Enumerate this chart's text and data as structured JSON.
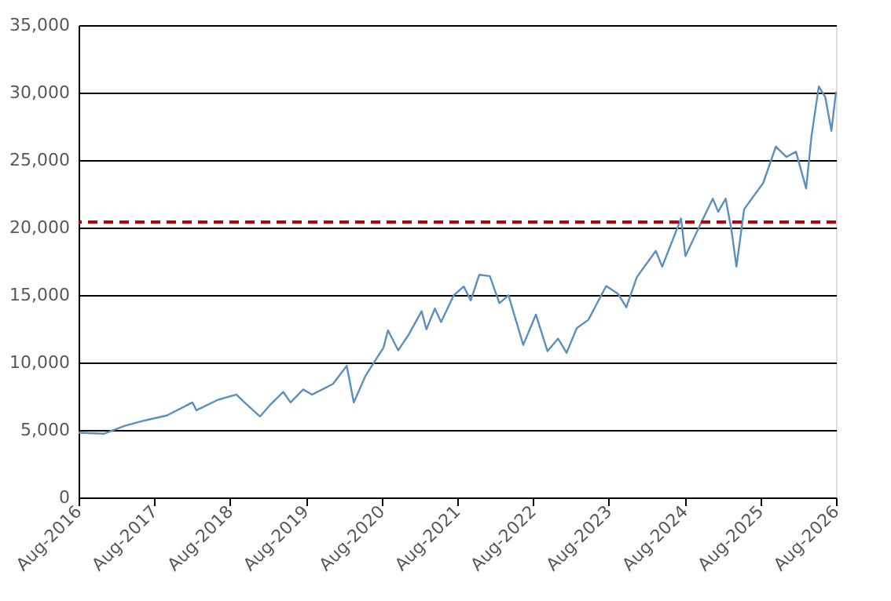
{
  "chart_data": {
    "type": "line",
    "x": [
      "2016-08-01",
      "2016-12-01",
      "2017-03-10",
      "2017-06-15",
      "2017-10-01",
      "2018-02-01",
      "2018-02-20",
      "2018-06-05",
      "2018-09-01",
      "2018-10-10",
      "2018-12-24",
      "2019-02-10",
      "2019-04-15",
      "2019-05-20",
      "2019-07-20",
      "2019-09-01",
      "2019-12-10",
      "2020-02-15",
      "2020-03-20",
      "2020-05-15",
      "2020-08-10",
      "2020-09-01",
      "2020-10-20",
      "2020-12-10",
      "2021-02-10",
      "2021-03-05",
      "2021-04-15",
      "2021-05-15",
      "2021-07-15",
      "2021-09-01",
      "2021-10-05",
      "2021-11-15",
      "2022-01-05",
      "2022-02-20",
      "2022-04-05",
      "2022-06-15",
      "2022-08-15",
      "2022-10-10",
      "2022-11-30",
      "2023-01-10",
      "2023-02-28",
      "2023-04-25",
      "2023-07-20",
      "2023-09-15",
      "2023-10-25",
      "2023-12-15",
      "2024-03-15",
      "2024-04-15",
      "2024-07-15",
      "2024-08-05",
      "2024-10-15",
      "2024-12-15",
      "2025-01-10",
      "2025-02-15",
      "2025-03-15",
      "2025-04-08",
      "2025-05-15",
      "2025-08-15",
      "2025-10-15",
      "2025-12-05",
      "2026-01-20",
      "2026-03-10",
      "2026-04-05",
      "2026-05-10",
      "2026-06-10",
      "2026-07-10",
      "2026-08-01"
    ],
    "series": [
      {
        "color": "#5b8fc0",
        "values": [
          4800,
          4720,
          5300,
          5700,
          6075,
          7040,
          6460,
          7240,
          7620,
          7040,
          6000,
          6850,
          7820,
          7040,
          8000,
          7620,
          8400,
          9750,
          7040,
          9000,
          11100,
          12380,
          10900,
          12070,
          13800,
          12460,
          14000,
          13000,
          14980,
          15630,
          14600,
          16500,
          16400,
          14400,
          14980,
          11300,
          13550,
          10840,
          11770,
          10720,
          12540,
          13160,
          15670,
          15090,
          14090,
          16330,
          18270,
          17100,
          20670,
          17880,
          20200,
          22140,
          21170,
          22140,
          19810,
          17100,
          21360,
          23300,
          26000,
          25230,
          25620,
          22900,
          26780,
          30460,
          29680,
          27170,
          30070
        ]
      }
    ],
    "xlim": [
      "2016-08-01",
      "2026-08-01"
    ],
    "xticks": [
      {
        "value": "2016-08-01",
        "label": "Aug-2016"
      },
      {
        "value": "2017-08-01",
        "label": "Aug-2017"
      },
      {
        "value": "2018-08-01",
        "label": "Aug-2018"
      },
      {
        "value": "2019-08-01",
        "label": "Aug-2019"
      },
      {
        "value": "2020-08-01",
        "label": "Aug-2020"
      },
      {
        "value": "2021-08-01",
        "label": "Aug-2021"
      },
      {
        "value": "2022-08-01",
        "label": "Aug-2022"
      },
      {
        "value": "2023-08-01",
        "label": "Aug-2023"
      },
      {
        "value": "2024-08-01",
        "label": "Aug-2024"
      },
      {
        "value": "2025-08-01",
        "label": "Aug-2025"
      },
      {
        "value": "2026-08-01",
        "label": "Aug-2026"
      }
    ],
    "ylim": [
      0,
      35000
    ],
    "yticks": [
      {
        "value": 0,
        "label": "0"
      },
      {
        "value": 5000,
        "label": "5,000"
      },
      {
        "value": 10000,
        "label": "10,000"
      },
      {
        "value": 15000,
        "label": "15,000"
      },
      {
        "value": 20000,
        "label": "20,000"
      },
      {
        "value": 25000,
        "label": "25,000"
      },
      {
        "value": 30000,
        "label": "30,000"
      },
      {
        "value": 35000,
        "label": "35,000"
      }
    ],
    "ref_lines": [
      {
        "axis": "y",
        "value": 20400,
        "color": "#c00000",
        "line_style": "dashed"
      }
    ],
    "grid": "y",
    "marker": "none",
    "line_style": "solid"
  }
}
